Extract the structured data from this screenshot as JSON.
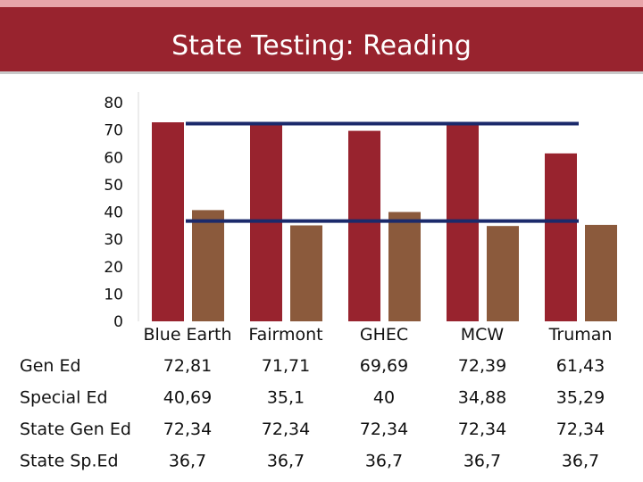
{
  "header": {
    "title": "State Testing: Reading",
    "bg_color": "#98232e",
    "strip_color": "#e7a4a9"
  },
  "chart_data": {
    "type": "bar",
    "title": "State Testing: Reading",
    "categories": [
      "Blue Earth",
      "Fairmont",
      "GHEC",
      "MCW",
      "Truman"
    ],
    "ylim": [
      0,
      80
    ],
    "yticks": [
      80,
      70,
      60,
      50,
      40,
      30,
      20,
      10,
      0
    ],
    "grid": false,
    "series": [
      {
        "name": "Gen Ed",
        "kind": "bar",
        "color": "#98232e",
        "values": [
          72.81,
          71.71,
          69.69,
          72.39,
          61.43
        ],
        "labels": [
          "72,81",
          "71,71",
          "69,69",
          "72,39",
          "61,43"
        ]
      },
      {
        "name": "Special Ed",
        "kind": "bar",
        "color": "#8b5a3c",
        "values": [
          40.69,
          35.1,
          40,
          34.88,
          35.29
        ],
        "labels": [
          "40,69",
          "35,1",
          "40",
          "34,88",
          "35,29"
        ]
      },
      {
        "name": "State Gen Ed",
        "kind": "line",
        "color": "#1b2a6b",
        "values": [
          72.34,
          72.34,
          72.34,
          72.34,
          72.34
        ],
        "labels": [
          "72,34",
          "72,34",
          "72,34",
          "72,34",
          "72,34"
        ]
      },
      {
        "name": "State Sp.Ed",
        "kind": "line",
        "color": "#1b2a6b",
        "values": [
          36.7,
          36.7,
          36.7,
          36.7,
          36.7
        ],
        "labels": [
          "36,7",
          "36,7",
          "36,7",
          "36,7",
          "36,7"
        ]
      }
    ]
  }
}
